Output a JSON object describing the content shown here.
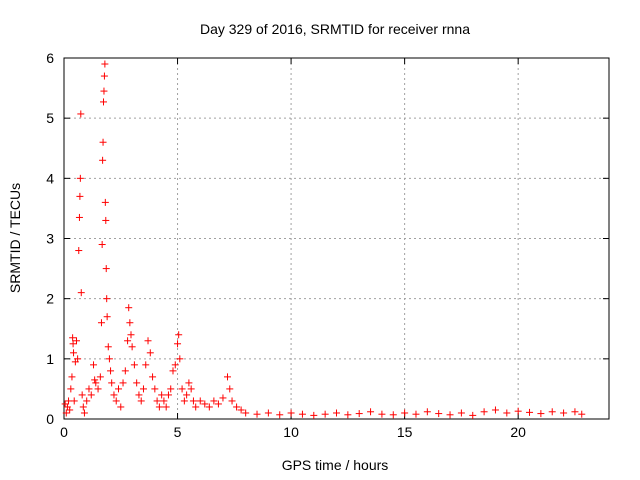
{
  "chart_data": {
    "type": "scatter",
    "title": "Day 329 of 2016, SRMTID for receiver rnna",
    "xlabel": "GPS time / hours",
    "ylabel": "SRMTID / TECUs",
    "xlim": [
      0,
      24
    ],
    "ylim": [
      0,
      6
    ],
    "x_ticks": [
      0,
      5,
      10,
      15,
      20
    ],
    "y_ticks": [
      0,
      1,
      2,
      3,
      4,
      5,
      6
    ],
    "grid": true,
    "marker": "+",
    "series": [
      {
        "name": "SRMTID",
        "color": "#ff0000",
        "points": [
          [
            0.05,
            0.25
          ],
          [
            0.1,
            0.1
          ],
          [
            0.15,
            0.2
          ],
          [
            0.2,
            0.3
          ],
          [
            0.25,
            0.15
          ],
          [
            0.3,
            0.5
          ],
          [
            0.35,
            0.7
          ],
          [
            0.38,
            1.35
          ],
          [
            0.4,
            1.25
          ],
          [
            0.42,
            1.1
          ],
          [
            0.45,
            0.3
          ],
          [
            0.5,
            0.95
          ],
          [
            0.55,
            1.3
          ],
          [
            0.6,
            1.0
          ],
          [
            0.65,
            2.8
          ],
          [
            0.68,
            3.35
          ],
          [
            0.7,
            3.7
          ],
          [
            0.72,
            4.0
          ],
          [
            0.74,
            5.07
          ],
          [
            0.76,
            2.1
          ],
          [
            0.8,
            0.4
          ],
          [
            0.85,
            0.2
          ],
          [
            0.9,
            0.1
          ],
          [
            1.0,
            0.3
          ],
          [
            1.1,
            0.5
          ],
          [
            1.2,
            0.4
          ],
          [
            1.3,
            0.9
          ],
          [
            1.35,
            0.65
          ],
          [
            1.4,
            0.6
          ],
          [
            1.5,
            0.5
          ],
          [
            1.6,
            0.7
          ],
          [
            1.65,
            1.6
          ],
          [
            1.68,
            2.9
          ],
          [
            1.7,
            4.3
          ],
          [
            1.72,
            4.6
          ],
          [
            1.74,
            5.27
          ],
          [
            1.76,
            5.45
          ],
          [
            1.78,
            5.7
          ],
          [
            1.8,
            5.9
          ],
          [
            1.82,
            3.6
          ],
          [
            1.84,
            3.3
          ],
          [
            1.86,
            2.5
          ],
          [
            1.88,
            2.0
          ],
          [
            1.9,
            1.7
          ],
          [
            1.95,
            1.2
          ],
          [
            2.0,
            1.0
          ],
          [
            2.05,
            0.8
          ],
          [
            2.1,
            0.6
          ],
          [
            2.2,
            0.4
          ],
          [
            2.3,
            0.3
          ],
          [
            2.4,
            0.5
          ],
          [
            2.5,
            0.2
          ],
          [
            2.6,
            0.6
          ],
          [
            2.7,
            0.8
          ],
          [
            2.8,
            1.3
          ],
          [
            2.85,
            1.85
          ],
          [
            2.9,
            1.6
          ],
          [
            2.95,
            1.4
          ],
          [
            3.0,
            1.2
          ],
          [
            3.1,
            0.9
          ],
          [
            3.2,
            0.6
          ],
          [
            3.3,
            0.4
          ],
          [
            3.4,
            0.3
          ],
          [
            3.5,
            0.5
          ],
          [
            3.6,
            0.9
          ],
          [
            3.7,
            1.3
          ],
          [
            3.8,
            1.1
          ],
          [
            3.9,
            0.7
          ],
          [
            4.0,
            0.5
          ],
          [
            4.1,
            0.3
          ],
          [
            4.2,
            0.2
          ],
          [
            4.3,
            0.4
          ],
          [
            4.4,
            0.3
          ],
          [
            4.5,
            0.2
          ],
          [
            4.6,
            0.4
          ],
          [
            4.7,
            0.5
          ],
          [
            4.8,
            0.8
          ],
          [
            4.9,
            0.9
          ],
          [
            5.0,
            1.25
          ],
          [
            5.05,
            1.4
          ],
          [
            5.1,
            1.0
          ],
          [
            5.2,
            0.5
          ],
          [
            5.3,
            0.3
          ],
          [
            5.4,
            0.4
          ],
          [
            5.5,
            0.6
          ],
          [
            5.6,
            0.5
          ],
          [
            5.7,
            0.3
          ],
          [
            5.8,
            0.2
          ],
          [
            6.0,
            0.3
          ],
          [
            6.2,
            0.25
          ],
          [
            6.4,
            0.2
          ],
          [
            6.6,
            0.3
          ],
          [
            6.8,
            0.25
          ],
          [
            7.0,
            0.35
          ],
          [
            7.2,
            0.7
          ],
          [
            7.3,
            0.5
          ],
          [
            7.4,
            0.3
          ],
          [
            7.6,
            0.2
          ],
          [
            7.8,
            0.15
          ],
          [
            8.0,
            0.1
          ],
          [
            8.5,
            0.08
          ],
          [
            9.0,
            0.1
          ],
          [
            9.5,
            0.07
          ],
          [
            10.0,
            0.1
          ],
          [
            10.5,
            0.08
          ],
          [
            11.0,
            0.06
          ],
          [
            11.5,
            0.08
          ],
          [
            12.0,
            0.1
          ],
          [
            12.5,
            0.07
          ],
          [
            13.0,
            0.09
          ],
          [
            13.5,
            0.12
          ],
          [
            14.0,
            0.08
          ],
          [
            14.5,
            0.07
          ],
          [
            15.0,
            0.1
          ],
          [
            15.5,
            0.08
          ],
          [
            16.0,
            0.12
          ],
          [
            16.5,
            0.09
          ],
          [
            17.0,
            0.07
          ],
          [
            17.5,
            0.1
          ],
          [
            18.0,
            0.06
          ],
          [
            18.5,
            0.12
          ],
          [
            19.0,
            0.15
          ],
          [
            19.5,
            0.1
          ],
          [
            20.0,
            0.13
          ],
          [
            20.5,
            0.11
          ],
          [
            21.0,
            0.09
          ],
          [
            21.5,
            0.12
          ],
          [
            22.0,
            0.1
          ],
          [
            22.5,
            0.12
          ],
          [
            22.8,
            0.08
          ]
        ]
      }
    ]
  }
}
